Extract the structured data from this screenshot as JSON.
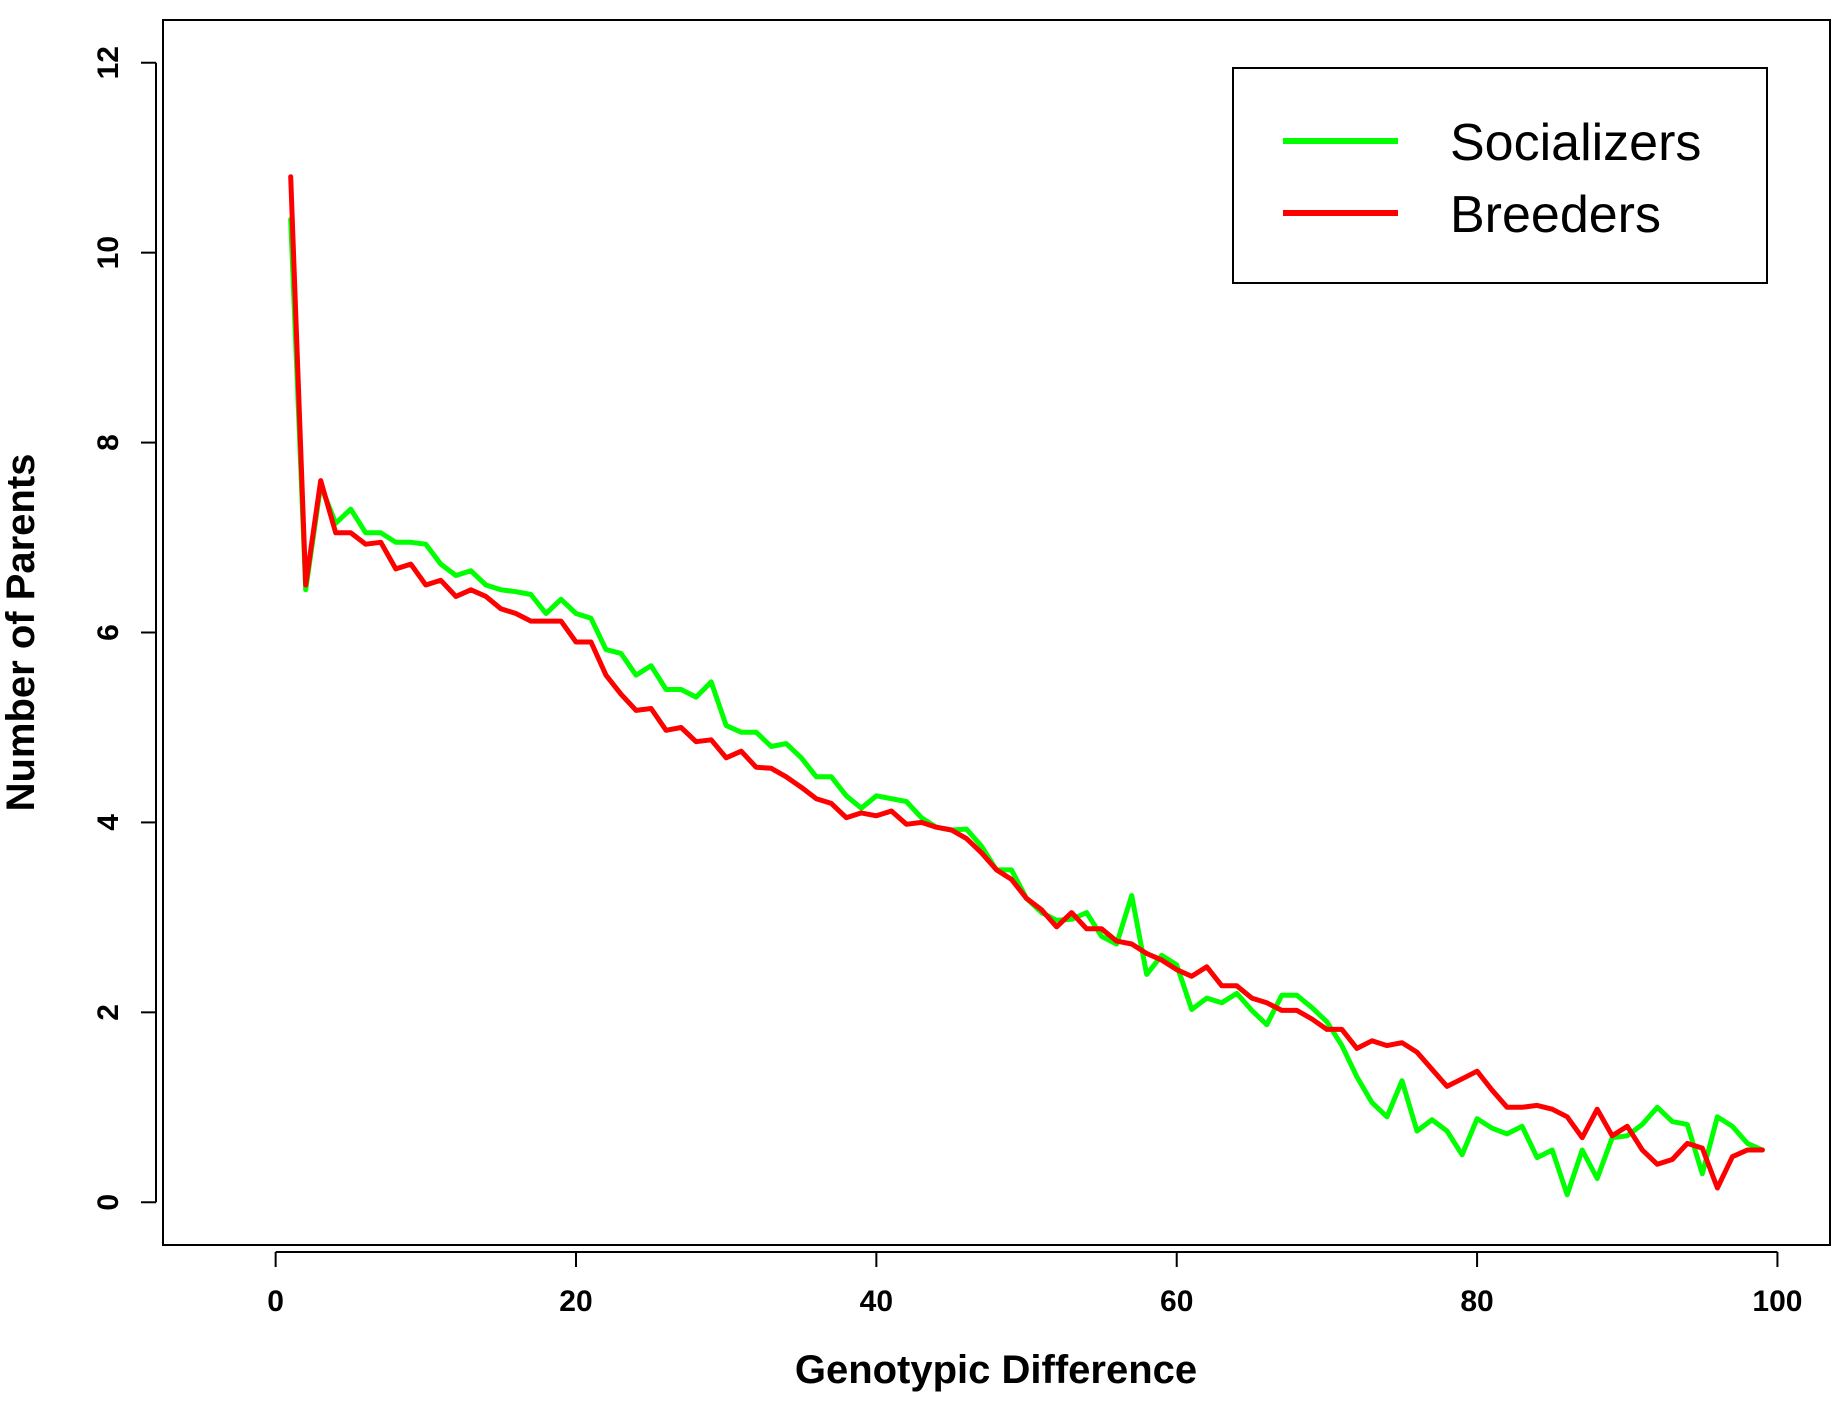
{
  "chart_data": {
    "type": "line",
    "title": "",
    "xlabel": "Genotypic Difference",
    "ylabel": "Number of Parents",
    "xlim": [
      -7.5,
      103.5
    ],
    "ylim": [
      -0.45,
      12.45
    ],
    "xticks": [
      0,
      20,
      40,
      60,
      80,
      100
    ],
    "yticks": [
      0,
      2,
      4,
      6,
      8,
      10,
      12
    ],
    "xtick_labels": [
      "0",
      "20",
      "40",
      "60",
      "80",
      "100"
    ],
    "ytick_labels": [
      "0",
      "2",
      "4",
      "6",
      "8",
      "10",
      "12"
    ],
    "legend_position": "top-right",
    "x": [
      1,
      2,
      3,
      4,
      5,
      6,
      7,
      8,
      9,
      10,
      11,
      12,
      13,
      14,
      15,
      16,
      17,
      18,
      19,
      20,
      21,
      22,
      23,
      24,
      25,
      26,
      27,
      28,
      29,
      30,
      31,
      32,
      33,
      34,
      35,
      36,
      37,
      38,
      39,
      40,
      41,
      42,
      43,
      44,
      45,
      46,
      47,
      48,
      49,
      50,
      51,
      52,
      53,
      54,
      55,
      56,
      57,
      58,
      59,
      60,
      61,
      62,
      63,
      64,
      65,
      66,
      67,
      68,
      69,
      70,
      71,
      72,
      73,
      74,
      75,
      76,
      77,
      78,
      79,
      80,
      81,
      82,
      83,
      84,
      85,
      86,
      87,
      88,
      89,
      90,
      91,
      92,
      93,
      94,
      95,
      96,
      97,
      98,
      99
    ],
    "series": [
      {
        "name": "Socializers",
        "color": "#00ff00",
        "values": [
          10.35,
          6.45,
          7.55,
          7.15,
          7.3,
          7.05,
          7.05,
          6.95,
          6.95,
          6.93,
          6.72,
          6.6,
          6.65,
          6.5,
          6.45,
          6.43,
          6.4,
          6.2,
          6.35,
          6.2,
          6.15,
          5.82,
          5.78,
          5.55,
          5.65,
          5.4,
          5.4,
          5.32,
          5.48,
          5.02,
          4.95,
          4.95,
          4.8,
          4.83,
          4.68,
          4.48,
          4.48,
          4.28,
          4.15,
          4.28,
          4.25,
          4.22,
          4.05,
          3.95,
          3.92,
          3.93,
          3.75,
          3.5,
          3.5,
          3.2,
          3.05,
          2.97,
          2.98,
          3.05,
          2.8,
          2.72,
          3.23,
          2.4,
          2.6,
          2.5,
          2.03,
          2.15,
          2.1,
          2.2,
          2.02,
          1.87,
          2.18,
          2.18,
          2.05,
          1.9,
          1.65,
          1.32,
          1.05,
          0.9,
          1.28,
          0.75,
          0.87,
          0.75,
          0.5,
          0.88,
          0.78,
          0.72,
          0.8,
          0.47,
          0.55,
          0.08,
          0.55,
          0.25,
          0.68,
          0.7,
          0.82,
          1.0,
          0.85,
          0.82,
          0.3,
          0.9,
          0.8,
          0.62,
          0.55
        ]
      },
      {
        "name": "Breeders",
        "color": "#ff0000",
        "values": [
          10.8,
          6.5,
          7.6,
          7.05,
          7.05,
          6.93,
          6.95,
          6.67,
          6.72,
          6.5,
          6.55,
          6.38,
          6.45,
          6.38,
          6.25,
          6.2,
          6.12,
          6.12,
          6.12,
          5.9,
          5.9,
          5.55,
          5.35,
          5.18,
          5.2,
          4.97,
          5.0,
          4.85,
          4.87,
          4.68,
          4.75,
          4.58,
          4.57,
          4.48,
          4.37,
          4.25,
          4.2,
          4.05,
          4.1,
          4.07,
          4.12,
          3.98,
          4.0,
          3.95,
          3.92,
          3.83,
          3.68,
          3.5,
          3.4,
          3.2,
          3.08,
          2.9,
          3.05,
          2.88,
          2.88,
          2.75,
          2.72,
          2.62,
          2.55,
          2.45,
          2.38,
          2.48,
          2.28,
          2.28,
          2.15,
          2.1,
          2.02,
          2.02,
          1.93,
          1.82,
          1.82,
          1.62,
          1.7,
          1.65,
          1.68,
          1.58,
          1.4,
          1.22,
          1.3,
          1.38,
          1.18,
          1.0,
          1.0,
          1.02,
          0.98,
          0.9,
          0.68,
          0.98,
          0.7,
          0.8,
          0.55,
          0.4,
          0.45,
          0.62,
          0.57,
          0.15,
          0.48,
          0.55,
          0.55
        ]
      }
    ]
  }
}
